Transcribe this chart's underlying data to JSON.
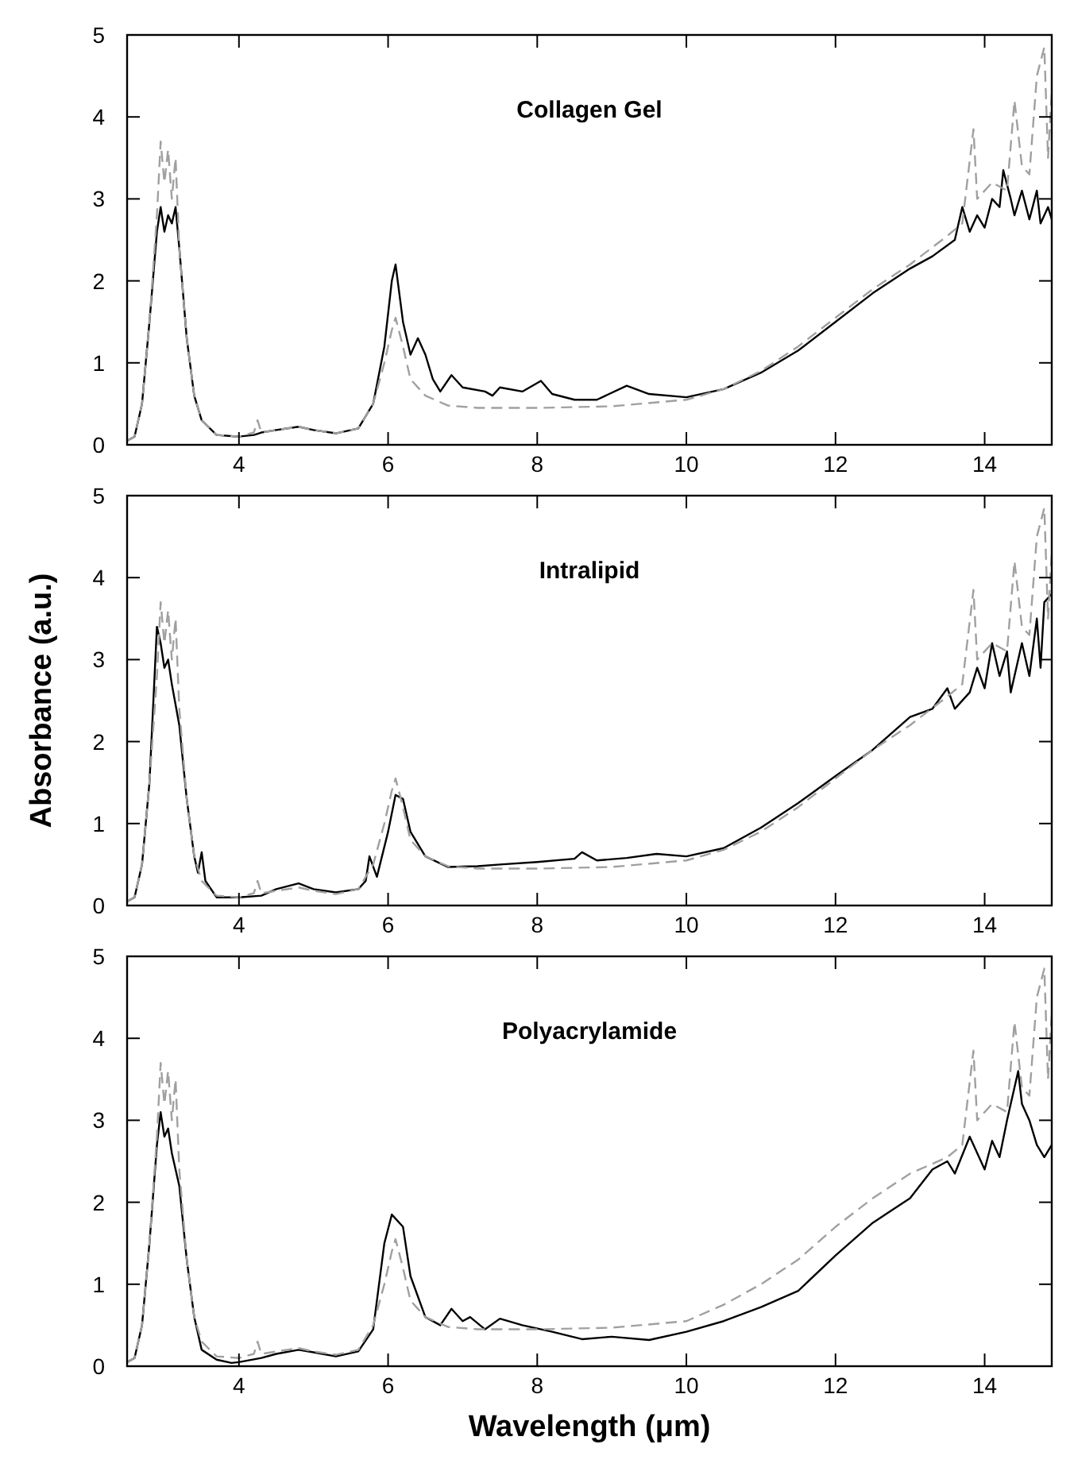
{
  "chart_data": [
    {
      "type": "line",
      "title": "Collagen Gel",
      "xlim": [
        2.5,
        14.9
      ],
      "xticks": [
        4,
        6,
        8,
        10,
        12,
        14
      ],
      "ylim": [
        0,
        5
      ],
      "yticks": [
        0,
        1,
        2,
        3,
        4,
        5
      ],
      "grid": false,
      "marker": "none",
      "series": [
        {
          "color": "#000000",
          "line_style": "solid",
          "x": [
            2.5,
            2.6,
            2.7,
            2.8,
            2.9,
            2.95,
            3.0,
            3.05,
            3.1,
            3.15,
            3.2,
            3.3,
            3.4,
            3.5,
            3.7,
            4.0,
            4.2,
            4.3,
            4.5,
            4.8,
            5.0,
            5.3,
            5.6,
            5.8,
            5.95,
            6.05,
            6.1,
            6.2,
            6.3,
            6.4,
            6.5,
            6.6,
            6.7,
            6.85,
            7.0,
            7.3,
            7.4,
            7.5,
            7.8,
            8.05,
            8.2,
            8.5,
            8.8,
            9.2,
            9.5,
            10,
            10.5,
            11,
            11.5,
            12,
            12.5,
            13,
            13.3,
            13.6,
            13.7,
            13.8,
            13.9,
            14.0,
            14.1,
            14.2,
            14.25,
            14.35,
            14.4,
            14.5,
            14.6,
            14.7,
            14.75,
            14.85,
            14.9
          ],
          "values": [
            0.05,
            0.1,
            0.5,
            1.5,
            2.6,
            2.9,
            2.6,
            2.8,
            2.7,
            2.9,
            2.4,
            1.3,
            0.6,
            0.3,
            0.12,
            0.1,
            0.12,
            0.15,
            0.18,
            0.22,
            0.18,
            0.14,
            0.2,
            0.5,
            1.2,
            2.0,
            2.2,
            1.5,
            1.1,
            1.3,
            1.1,
            0.8,
            0.65,
            0.85,
            0.7,
            0.65,
            0.6,
            0.7,
            0.65,
            0.78,
            0.62,
            0.55,
            0.55,
            0.72,
            0.62,
            0.58,
            0.68,
            0.88,
            1.15,
            1.5,
            1.85,
            2.15,
            2.3,
            2.5,
            2.9,
            2.6,
            2.8,
            2.65,
            3.0,
            2.9,
            3.35,
            3.0,
            2.8,
            3.1,
            2.75,
            3.1,
            2.7,
            2.9,
            2.75
          ]
        },
        {
          "color": "#a0a0a0",
          "line_style": "dashed",
          "x": [
            2.5,
            2.6,
            2.7,
            2.8,
            2.9,
            2.95,
            3.0,
            3.05,
            3.1,
            3.15,
            3.2,
            3.3,
            3.4,
            3.5,
            3.7,
            4.0,
            4.2,
            4.25,
            4.3,
            4.5,
            4.8,
            5.0,
            5.3,
            5.6,
            5.8,
            5.95,
            6.05,
            6.1,
            6.2,
            6.3,
            6.5,
            6.8,
            7.2,
            8,
            9,
            10,
            10.5,
            11,
            11.5,
            12,
            12.5,
            13,
            13.5,
            13.7,
            13.85,
            13.9,
            14.1,
            14.3,
            14.4,
            14.5,
            14.6,
            14.7,
            14.8,
            14.85,
            14.9
          ],
          "values": [
            0.05,
            0.1,
            0.5,
            1.5,
            2.8,
            3.7,
            3.2,
            3.6,
            3.0,
            3.5,
            2.4,
            1.3,
            0.6,
            0.3,
            0.12,
            0.1,
            0.15,
            0.3,
            0.15,
            0.18,
            0.22,
            0.18,
            0.14,
            0.2,
            0.5,
            1.0,
            1.4,
            1.55,
            1.2,
            0.8,
            0.6,
            0.48,
            0.45,
            0.45,
            0.47,
            0.55,
            0.68,
            0.9,
            1.2,
            1.55,
            1.9,
            2.2,
            2.55,
            2.7,
            3.85,
            3.0,
            3.2,
            3.1,
            4.2,
            3.4,
            3.3,
            4.5,
            4.85,
            3.5,
            4.3
          ]
        }
      ]
    },
    {
      "type": "line",
      "title": "Intralipid",
      "ylabel": "Absorbance (a.u.)",
      "xlim": [
        2.5,
        14.9
      ],
      "xticks": [
        4,
        6,
        8,
        10,
        12,
        14
      ],
      "ylim": [
        0,
        5
      ],
      "yticks": [
        0,
        1,
        2,
        3,
        4,
        5
      ],
      "grid": false,
      "marker": "none",
      "series": [
        {
          "color": "#000000",
          "line_style": "solid",
          "x": [
            2.5,
            2.6,
            2.7,
            2.8,
            2.9,
            2.95,
            3.0,
            3.05,
            3.1,
            3.2,
            3.3,
            3.4,
            3.45,
            3.5,
            3.55,
            3.7,
            4.0,
            4.3,
            4.5,
            4.8,
            5.0,
            5.3,
            5.6,
            5.7,
            5.75,
            5.85,
            6.0,
            6.1,
            6.2,
            6.3,
            6.5,
            6.8,
            7.2,
            7.5,
            8,
            8.5,
            8.6,
            8.8,
            9.2,
            9.6,
            10,
            10.5,
            11,
            11.5,
            12,
            12.5,
            13,
            13.3,
            13.5,
            13.6,
            13.8,
            13.9,
            14.0,
            14.1,
            14.2,
            14.3,
            14.35,
            14.5,
            14.6,
            14.7,
            14.75,
            14.8,
            14.9
          ],
          "values": [
            0.05,
            0.1,
            0.5,
            1.5,
            3.4,
            3.2,
            2.9,
            3.0,
            2.7,
            2.2,
            1.3,
            0.6,
            0.4,
            0.65,
            0.3,
            0.1,
            0.1,
            0.12,
            0.2,
            0.27,
            0.2,
            0.16,
            0.2,
            0.3,
            0.6,
            0.35,
            0.9,
            1.35,
            1.3,
            0.9,
            0.6,
            0.47,
            0.48,
            0.5,
            0.53,
            0.57,
            0.65,
            0.55,
            0.58,
            0.63,
            0.6,
            0.7,
            0.95,
            1.25,
            1.58,
            1.9,
            2.3,
            2.4,
            2.65,
            2.4,
            2.6,
            2.9,
            2.65,
            3.2,
            2.8,
            3.1,
            2.6,
            3.2,
            2.8,
            3.5,
            2.9,
            3.7,
            3.8
          ]
        },
        {
          "color": "#a0a0a0",
          "line_style": "dashed",
          "x": [
            2.5,
            2.6,
            2.7,
            2.8,
            2.9,
            2.95,
            3.0,
            3.05,
            3.1,
            3.15,
            3.2,
            3.3,
            3.4,
            3.5,
            3.7,
            4.0,
            4.2,
            4.25,
            4.3,
            4.5,
            4.8,
            5.0,
            5.3,
            5.6,
            5.8,
            5.95,
            6.05,
            6.1,
            6.2,
            6.3,
            6.5,
            6.8,
            7.2,
            8,
            9,
            10,
            10.5,
            11,
            11.5,
            12,
            12.5,
            13,
            13.5,
            13.7,
            13.85,
            13.9,
            14.1,
            14.3,
            14.4,
            14.5,
            14.6,
            14.7,
            14.8,
            14.85,
            14.9
          ],
          "values": [
            0.05,
            0.1,
            0.5,
            1.5,
            2.8,
            3.7,
            3.2,
            3.6,
            3.0,
            3.5,
            2.4,
            1.3,
            0.6,
            0.3,
            0.12,
            0.1,
            0.15,
            0.3,
            0.15,
            0.18,
            0.22,
            0.18,
            0.14,
            0.2,
            0.5,
            1.0,
            1.4,
            1.55,
            1.2,
            0.8,
            0.6,
            0.48,
            0.45,
            0.45,
            0.47,
            0.55,
            0.68,
            0.9,
            1.2,
            1.55,
            1.9,
            2.2,
            2.55,
            2.7,
            3.85,
            3.0,
            3.2,
            3.1,
            4.2,
            3.4,
            3.3,
            4.5,
            4.85,
            3.5,
            4.3
          ]
        }
      ]
    },
    {
      "type": "line",
      "title": "Polyacrylamide",
      "xlabel": "Wavelength (μm)",
      "xlim": [
        2.5,
        14.9
      ],
      "xticks": [
        4,
        6,
        8,
        10,
        12,
        14
      ],
      "ylim": [
        0,
        5
      ],
      "yticks": [
        0,
        1,
        2,
        3,
        4,
        5
      ],
      "grid": false,
      "marker": "none",
      "series": [
        {
          "color": "#000000",
          "line_style": "solid",
          "x": [
            2.5,
            2.6,
            2.7,
            2.8,
            2.9,
            2.95,
            3.0,
            3.05,
            3.1,
            3.2,
            3.3,
            3.4,
            3.5,
            3.7,
            3.9,
            4.0,
            4.3,
            4.5,
            4.8,
            5.0,
            5.3,
            5.6,
            5.8,
            5.95,
            6.05,
            6.2,
            6.3,
            6.5,
            6.7,
            6.85,
            7.0,
            7.1,
            7.3,
            7.5,
            7.8,
            8.2,
            8.6,
            9.0,
            9.5,
            10,
            10.5,
            11,
            11.5,
            12,
            12.5,
            13,
            13.3,
            13.5,
            13.6,
            13.8,
            14.0,
            14.1,
            14.2,
            14.3,
            14.45,
            14.5,
            14.6,
            14.7,
            14.8,
            14.9
          ],
          "values": [
            0.05,
            0.1,
            0.5,
            1.5,
            2.7,
            3.1,
            2.8,
            2.9,
            2.6,
            2.2,
            1.3,
            0.6,
            0.2,
            0.08,
            0.04,
            0.05,
            0.1,
            0.15,
            0.2,
            0.17,
            0.12,
            0.18,
            0.45,
            1.5,
            1.85,
            1.7,
            1.1,
            0.6,
            0.5,
            0.7,
            0.55,
            0.6,
            0.45,
            0.58,
            0.5,
            0.42,
            0.33,
            0.36,
            0.32,
            0.42,
            0.55,
            0.72,
            0.92,
            1.35,
            1.75,
            2.05,
            2.4,
            2.5,
            2.35,
            2.8,
            2.4,
            2.75,
            2.55,
            3.0,
            3.6,
            3.2,
            3.0,
            2.7,
            2.55,
            2.7
          ]
        },
        {
          "color": "#a0a0a0",
          "line_style": "dashed",
          "x": [
            2.5,
            2.6,
            2.7,
            2.8,
            2.9,
            2.95,
            3.0,
            3.05,
            3.1,
            3.15,
            3.2,
            3.3,
            3.4,
            3.5,
            3.7,
            4.0,
            4.2,
            4.25,
            4.3,
            4.5,
            4.8,
            5.0,
            5.3,
            5.6,
            5.8,
            5.95,
            6.05,
            6.1,
            6.2,
            6.3,
            6.5,
            6.8,
            7.2,
            8,
            9,
            10,
            10.5,
            11,
            11.5,
            12,
            12.5,
            13,
            13.5,
            13.7,
            13.85,
            13.9,
            14.1,
            14.3,
            14.4,
            14.5,
            14.6,
            14.7,
            14.8,
            14.85,
            14.9
          ],
          "values": [
            0.05,
            0.1,
            0.5,
            1.5,
            2.8,
            3.7,
            3.2,
            3.6,
            3.0,
            3.5,
            2.4,
            1.3,
            0.6,
            0.3,
            0.12,
            0.1,
            0.15,
            0.3,
            0.15,
            0.18,
            0.22,
            0.18,
            0.14,
            0.2,
            0.5,
            1.0,
            1.4,
            1.55,
            1.2,
            0.8,
            0.6,
            0.48,
            0.45,
            0.45,
            0.47,
            0.55,
            0.75,
            1.0,
            1.3,
            1.7,
            2.05,
            2.35,
            2.55,
            2.7,
            3.85,
            3.0,
            3.2,
            3.1,
            4.2,
            3.4,
            3.3,
            4.5,
            4.85,
            3.5,
            4.3
          ]
        }
      ]
    }
  ]
}
